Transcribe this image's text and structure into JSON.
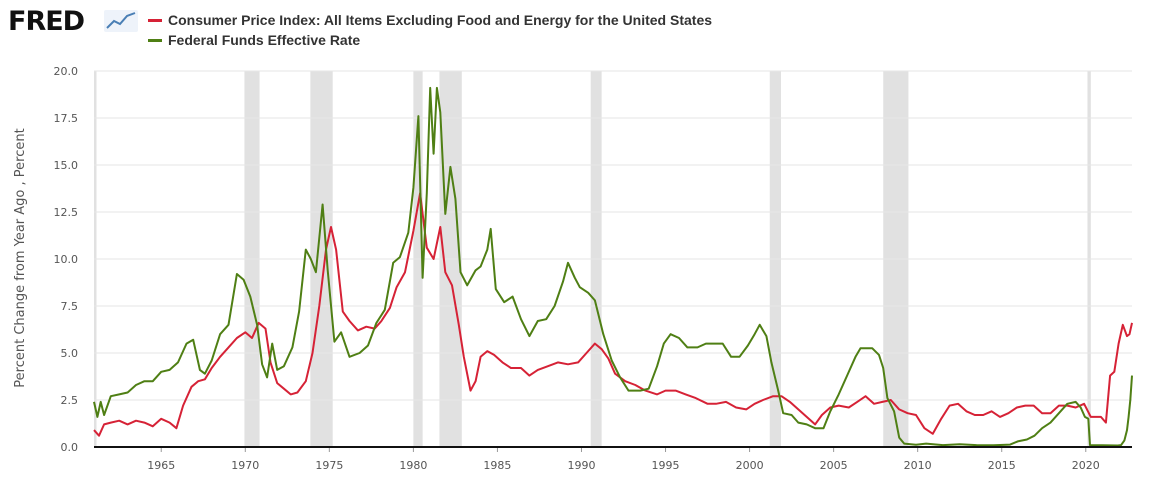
{
  "brand": {
    "logo_text": "FRED",
    "logo_mark": "®",
    "spark_icon": "chart-line-icon"
  },
  "colors": {
    "cpi": "#d62236",
    "fedfunds": "#4f7f14",
    "recession": "#e1e1e1"
  },
  "chart_data": {
    "type": "line",
    "ylabel": "Percent Change from Year Ago , Percent",
    "xlim": [
      1961.0,
      2022.75
    ],
    "ylim": [
      0,
      20
    ],
    "yticks": [
      "0.0",
      "2.5",
      "5.0",
      "7.5",
      "10.0",
      "12.5",
      "15.0",
      "17.5",
      "20.0"
    ],
    "xticks": [
      "1965",
      "1970",
      "1975",
      "1980",
      "1985",
      "1990",
      "1995",
      "2000",
      "2005",
      "2010",
      "2015",
      "2020"
    ],
    "grid": true,
    "legend_position": "top-left",
    "recessions": [
      [
        1961.0,
        1961.15
      ],
      [
        1969.95,
        1970.85
      ],
      [
        1973.87,
        1975.2
      ],
      [
        1980.0,
        1980.55
      ],
      [
        1981.55,
        1982.88
      ],
      [
        1990.55,
        1991.2
      ],
      [
        2001.2,
        2001.87
      ],
      [
        2007.95,
        2009.45
      ],
      [
        2020.1,
        2020.3
      ]
    ],
    "series": [
      {
        "name": "Consumer Price Index: All Items Excluding Food and Energy for the United States",
        "points": [
          [
            1961.0,
            0.9
          ],
          [
            1961.3,
            0.6
          ],
          [
            1961.6,
            1.2
          ],
          [
            1962.0,
            1.3
          ],
          [
            1962.5,
            1.4
          ],
          [
            1963.0,
            1.2
          ],
          [
            1963.5,
            1.4
          ],
          [
            1964.0,
            1.3
          ],
          [
            1964.5,
            1.1
          ],
          [
            1965.0,
            1.5
          ],
          [
            1965.5,
            1.3
          ],
          [
            1965.9,
            1.0
          ],
          [
            1966.3,
            2.2
          ],
          [
            1966.8,
            3.2
          ],
          [
            1967.2,
            3.5
          ],
          [
            1967.6,
            3.6
          ],
          [
            1968.0,
            4.2
          ],
          [
            1968.5,
            4.8
          ],
          [
            1969.0,
            5.3
          ],
          [
            1969.5,
            5.8
          ],
          [
            1970.0,
            6.1
          ],
          [
            1970.4,
            5.8
          ],
          [
            1970.8,
            6.6
          ],
          [
            1971.2,
            6.3
          ],
          [
            1971.5,
            4.5
          ],
          [
            1971.9,
            3.4
          ],
          [
            1972.3,
            3.1
          ],
          [
            1972.7,
            2.8
          ],
          [
            1973.1,
            2.9
          ],
          [
            1973.6,
            3.5
          ],
          [
            1974.0,
            5.0
          ],
          [
            1974.4,
            7.5
          ],
          [
            1974.8,
            10.5
          ],
          [
            1975.1,
            11.7
          ],
          [
            1975.4,
            10.5
          ],
          [
            1975.8,
            7.2
          ],
          [
            1976.2,
            6.7
          ],
          [
            1976.7,
            6.2
          ],
          [
            1977.2,
            6.4
          ],
          [
            1977.7,
            6.3
          ],
          [
            1978.1,
            6.7
          ],
          [
            1978.6,
            7.4
          ],
          [
            1979.0,
            8.5
          ],
          [
            1979.5,
            9.3
          ],
          [
            1980.0,
            11.5
          ],
          [
            1980.4,
            13.5
          ],
          [
            1980.8,
            10.6
          ],
          [
            1981.2,
            10.0
          ],
          [
            1981.6,
            11.7
          ],
          [
            1981.9,
            9.3
          ],
          [
            1982.3,
            8.6
          ],
          [
            1982.7,
            6.5
          ],
          [
            1983.0,
            4.8
          ],
          [
            1983.4,
            3.0
          ],
          [
            1983.7,
            3.5
          ],
          [
            1984.0,
            4.8
          ],
          [
            1984.4,
            5.1
          ],
          [
            1984.8,
            4.9
          ],
          [
            1985.3,
            4.5
          ],
          [
            1985.8,
            4.2
          ],
          [
            1986.4,
            4.2
          ],
          [
            1986.9,
            3.8
          ],
          [
            1987.4,
            4.1
          ],
          [
            1988.0,
            4.3
          ],
          [
            1988.6,
            4.5
          ],
          [
            1989.2,
            4.4
          ],
          [
            1989.8,
            4.5
          ],
          [
            1990.3,
            5.0
          ],
          [
            1990.8,
            5.5
          ],
          [
            1991.2,
            5.2
          ],
          [
            1991.6,
            4.7
          ],
          [
            1992.0,
            3.9
          ],
          [
            1992.6,
            3.5
          ],
          [
            1993.2,
            3.3
          ],
          [
            1993.8,
            3.0
          ],
          [
            1994.5,
            2.8
          ],
          [
            1995.0,
            3.0
          ],
          [
            1995.6,
            3.0
          ],
          [
            1996.2,
            2.8
          ],
          [
            1996.8,
            2.6
          ],
          [
            1997.5,
            2.3
          ],
          [
            1998.0,
            2.3
          ],
          [
            1998.6,
            2.4
          ],
          [
            1999.2,
            2.1
          ],
          [
            1999.8,
            2.0
          ],
          [
            2000.3,
            2.3
          ],
          [
            2000.8,
            2.5
          ],
          [
            2001.4,
            2.7
          ],
          [
            2001.9,
            2.7
          ],
          [
            2002.4,
            2.4
          ],
          [
            2002.9,
            2.0
          ],
          [
            2003.4,
            1.6
          ],
          [
            2003.9,
            1.2
          ],
          [
            2004.3,
            1.7
          ],
          [
            2004.8,
            2.1
          ],
          [
            2005.3,
            2.2
          ],
          [
            2005.9,
            2.1
          ],
          [
            2006.4,
            2.4
          ],
          [
            2006.9,
            2.7
          ],
          [
            2007.4,
            2.3
          ],
          [
            2007.9,
            2.4
          ],
          [
            2008.4,
            2.5
          ],
          [
            2008.9,
            2.0
          ],
          [
            2009.4,
            1.8
          ],
          [
            2009.9,
            1.7
          ],
          [
            2010.4,
            1.0
          ],
          [
            2010.9,
            0.7
          ],
          [
            2011.4,
            1.5
          ],
          [
            2011.9,
            2.2
          ],
          [
            2012.4,
            2.3
          ],
          [
            2012.9,
            1.9
          ],
          [
            2013.4,
            1.7
          ],
          [
            2013.9,
            1.7
          ],
          [
            2014.4,
            1.9
          ],
          [
            2014.9,
            1.6
          ],
          [
            2015.4,
            1.8
          ],
          [
            2015.9,
            2.1
          ],
          [
            2016.4,
            2.2
          ],
          [
            2016.9,
            2.2
          ],
          [
            2017.4,
            1.8
          ],
          [
            2017.9,
            1.8
          ],
          [
            2018.4,
            2.2
          ],
          [
            2018.9,
            2.2
          ],
          [
            2019.4,
            2.1
          ],
          [
            2019.9,
            2.3
          ],
          [
            2020.3,
            1.6
          ],
          [
            2020.6,
            1.6
          ],
          [
            2020.9,
            1.6
          ],
          [
            2021.2,
            1.3
          ],
          [
            2021.45,
            3.8
          ],
          [
            2021.7,
            4.0
          ],
          [
            2021.95,
            5.5
          ],
          [
            2022.2,
            6.5
          ],
          [
            2022.45,
            5.9
          ],
          [
            2022.6,
            6.0
          ],
          [
            2022.75,
            6.6
          ]
        ]
      },
      {
        "name": "Federal Funds Effective Rate",
        "points": [
          [
            1961.0,
            2.4
          ],
          [
            1961.2,
            1.6
          ],
          [
            1961.4,
            2.4
          ],
          [
            1961.6,
            1.7
          ],
          [
            1962.0,
            2.7
          ],
          [
            1962.5,
            2.8
          ],
          [
            1963.0,
            2.9
          ],
          [
            1963.5,
            3.3
          ],
          [
            1964.0,
            3.5
          ],
          [
            1964.5,
            3.5
          ],
          [
            1965.0,
            4.0
          ],
          [
            1965.5,
            4.1
          ],
          [
            1966.0,
            4.5
          ],
          [
            1966.5,
            5.5
          ],
          [
            1966.9,
            5.7
          ],
          [
            1967.3,
            4.1
          ],
          [
            1967.6,
            3.9
          ],
          [
            1968.0,
            4.6
          ],
          [
            1968.5,
            6.0
          ],
          [
            1969.0,
            6.5
          ],
          [
            1969.5,
            9.2
          ],
          [
            1969.9,
            8.9
          ],
          [
            1970.3,
            8.0
          ],
          [
            1970.7,
            6.5
          ],
          [
            1971.0,
            4.4
          ],
          [
            1971.3,
            3.7
          ],
          [
            1971.6,
            5.5
          ],
          [
            1971.9,
            4.1
          ],
          [
            1972.3,
            4.3
          ],
          [
            1972.8,
            5.3
          ],
          [
            1973.2,
            7.2
          ],
          [
            1973.6,
            10.5
          ],
          [
            1973.9,
            10.0
          ],
          [
            1974.2,
            9.3
          ],
          [
            1974.6,
            12.9
          ],
          [
            1974.9,
            9.4
          ],
          [
            1975.3,
            5.6
          ],
          [
            1975.7,
            6.1
          ],
          [
            1976.2,
            4.8
          ],
          [
            1976.8,
            5.0
          ],
          [
            1977.3,
            5.4
          ],
          [
            1977.8,
            6.6
          ],
          [
            1978.3,
            7.3
          ],
          [
            1978.8,
            9.8
          ],
          [
            1979.2,
            10.1
          ],
          [
            1979.7,
            11.4
          ],
          [
            1980.0,
            13.8
          ],
          [
            1980.3,
            17.6
          ],
          [
            1980.55,
            9.0
          ],
          [
            1980.8,
            13.5
          ],
          [
            1981.0,
            19.1
          ],
          [
            1981.2,
            15.6
          ],
          [
            1981.4,
            19.1
          ],
          [
            1981.6,
            17.8
          ],
          [
            1981.9,
            12.4
          ],
          [
            1982.2,
            14.9
          ],
          [
            1982.5,
            13.2
          ],
          [
            1982.8,
            9.3
          ],
          [
            1983.2,
            8.6
          ],
          [
            1983.7,
            9.4
          ],
          [
            1984.0,
            9.6
          ],
          [
            1984.4,
            10.5
          ],
          [
            1984.6,
            11.6
          ],
          [
            1984.9,
            8.4
          ],
          [
            1985.4,
            7.7
          ],
          [
            1985.9,
            8.0
          ],
          [
            1986.4,
            6.8
          ],
          [
            1986.9,
            5.9
          ],
          [
            1987.4,
            6.7
          ],
          [
            1987.9,
            6.8
          ],
          [
            1988.4,
            7.5
          ],
          [
            1988.9,
            8.8
          ],
          [
            1989.2,
            9.8
          ],
          [
            1989.6,
            9.0
          ],
          [
            1989.9,
            8.5
          ],
          [
            1990.4,
            8.2
          ],
          [
            1990.8,
            7.8
          ],
          [
            1991.3,
            6.0
          ],
          [
            1991.8,
            4.6
          ],
          [
            1992.3,
            3.7
          ],
          [
            1992.8,
            3.0
          ],
          [
            1993.5,
            3.0
          ],
          [
            1994.0,
            3.1
          ],
          [
            1994.5,
            4.3
          ],
          [
            1994.9,
            5.5
          ],
          [
            1995.3,
            6.0
          ],
          [
            1995.8,
            5.8
          ],
          [
            1996.3,
            5.3
          ],
          [
            1996.9,
            5.3
          ],
          [
            1997.4,
            5.5
          ],
          [
            1997.9,
            5.5
          ],
          [
            1998.4,
            5.5
          ],
          [
            1998.9,
            4.8
          ],
          [
            1999.4,
            4.8
          ],
          [
            1999.9,
            5.4
          ],
          [
            2000.3,
            6.0
          ],
          [
            2000.6,
            6.5
          ],
          [
            2001.0,
            5.9
          ],
          [
            2001.3,
            4.5
          ],
          [
            2001.7,
            3.0
          ],
          [
            2002.0,
            1.8
          ],
          [
            2002.5,
            1.7
          ],
          [
            2002.9,
            1.3
          ],
          [
            2003.4,
            1.2
          ],
          [
            2003.9,
            1.0
          ],
          [
            2004.4,
            1.0
          ],
          [
            2004.8,
            1.9
          ],
          [
            2005.3,
            2.8
          ],
          [
            2005.8,
            3.8
          ],
          [
            2006.3,
            4.8
          ],
          [
            2006.6,
            5.25
          ],
          [
            2007.3,
            5.25
          ],
          [
            2007.7,
            4.9
          ],
          [
            2007.95,
            4.2
          ],
          [
            2008.2,
            2.6
          ],
          [
            2008.6,
            1.9
          ],
          [
            2008.9,
            0.5
          ],
          [
            2009.2,
            0.18
          ],
          [
            2009.9,
            0.12
          ],
          [
            2010.5,
            0.18
          ],
          [
            2011.5,
            0.1
          ],
          [
            2012.5,
            0.15
          ],
          [
            2013.5,
            0.1
          ],
          [
            2014.5,
            0.09
          ],
          [
            2015.5,
            0.13
          ],
          [
            2015.95,
            0.3
          ],
          [
            2016.5,
            0.4
          ],
          [
            2016.95,
            0.6
          ],
          [
            2017.4,
            1.0
          ],
          [
            2017.9,
            1.3
          ],
          [
            2018.4,
            1.8
          ],
          [
            2018.9,
            2.3
          ],
          [
            2019.4,
            2.4
          ],
          [
            2019.7,
            2.1
          ],
          [
            2019.95,
            1.6
          ],
          [
            2020.15,
            1.5
          ],
          [
            2020.25,
            0.1
          ],
          [
            2021.0,
            0.09
          ],
          [
            2021.9,
            0.08
          ],
          [
            2022.1,
            0.1
          ],
          [
            2022.3,
            0.35
          ],
          [
            2022.45,
            0.9
          ],
          [
            2022.55,
            1.6
          ],
          [
            2022.65,
            2.5
          ],
          [
            2022.75,
            3.8
          ]
        ]
      }
    ]
  }
}
